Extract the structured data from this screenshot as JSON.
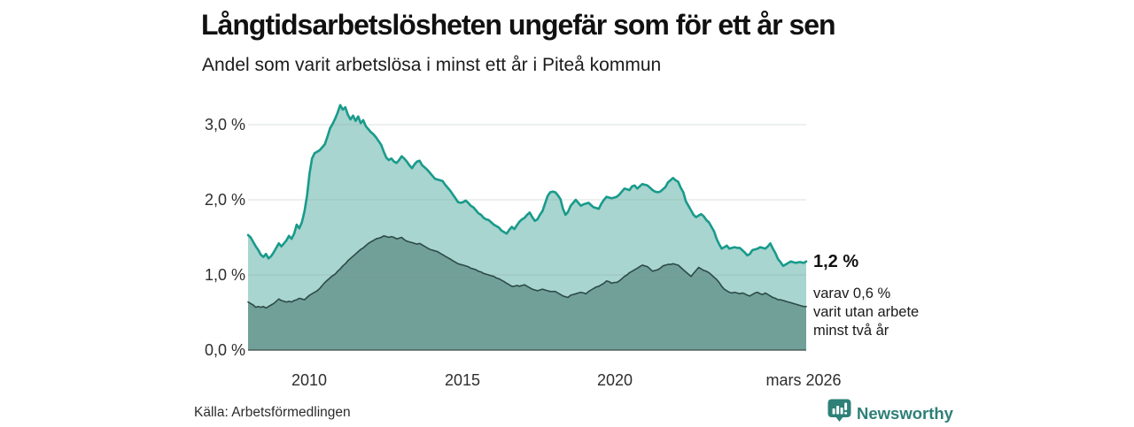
{
  "header": {
    "title": "Långtidsarbetslösheten ungefär som för ett år sen",
    "subtitle": "Andel som varit arbetslösa i minst ett år i Piteå kommun"
  },
  "annotation": {
    "value_label": "1,2 %",
    "note_lines": [
      "varav 0,6 %",
      "varit utan arbete",
      "minst två år"
    ]
  },
  "footer": {
    "source": "Källa: Arbetsförmedlingen",
    "brand": "Newsworthy"
  },
  "colors": {
    "series1_line": "#199a8b",
    "series1_fill": "#a8d5cf",
    "series2_line": "#2d4b47",
    "series2_fill": "#71a099",
    "gridline": "#8fa19e",
    "baseline": "#3f4a48",
    "brand_teal": "#2e8078"
  },
  "chart_data": {
    "type": "area",
    "title": "Långtidsarbetslösheten ungefär som för ett år sen",
    "subtitle": "Andel som varit arbetslösa i minst ett år i Piteå kommun",
    "unit": "%",
    "grid": true,
    "x_start": 2008.0,
    "x_step": 0.08333,
    "x_end_label": "mars 2026",
    "xlim": [
      2008.0,
      2026.17
    ],
    "ylim": [
      0,
      3.3
    ],
    "y_ticks": [
      {
        "value": 0,
        "label": "0,0 %"
      },
      {
        "value": 1,
        "label": "1,0 %"
      },
      {
        "value": 2,
        "label": "2,0 %"
      },
      {
        "value": 3,
        "label": "3,0 %"
      }
    ],
    "x_ticks": [
      {
        "value": 2010,
        "label": "2010"
      },
      {
        "value": 2015,
        "label": "2015"
      },
      {
        "value": 2020,
        "label": "2020"
      },
      {
        "value": 2026.17,
        "label": "mars 2026"
      }
    ],
    "series": [
      {
        "name": "Andel arbetslösa minst ett år",
        "end_value_label": "1,2 %",
        "line_color": "#199a8b",
        "fill_color": "#a8d5cf",
        "line_width": 2.6,
        "values": [
          1.53,
          1.5,
          1.44,
          1.38,
          1.33,
          1.27,
          1.24,
          1.28,
          1.22,
          1.25,
          1.3,
          1.36,
          1.42,
          1.38,
          1.42,
          1.46,
          1.52,
          1.48,
          1.55,
          1.67,
          1.62,
          1.7,
          1.84,
          2.05,
          2.35,
          2.55,
          2.62,
          2.64,
          2.66,
          2.7,
          2.74,
          2.84,
          2.95,
          3.01,
          3.08,
          3.16,
          3.26,
          3.2,
          3.23,
          3.13,
          3.07,
          3.12,
          3.05,
          3.11,
          3.02,
          3.06,
          2.98,
          2.94,
          2.9,
          2.87,
          2.83,
          2.78,
          2.73,
          2.64,
          2.56,
          2.53,
          2.55,
          2.51,
          2.49,
          2.53,
          2.58,
          2.55,
          2.51,
          2.46,
          2.42,
          2.47,
          2.51,
          2.52,
          2.46,
          2.43,
          2.4,
          2.36,
          2.32,
          2.28,
          2.27,
          2.26,
          2.25,
          2.2,
          2.16,
          2.12,
          2.07,
          2.02,
          1.97,
          1.96,
          1.97,
          1.99,
          1.96,
          1.92,
          1.9,
          1.86,
          1.82,
          1.8,
          1.76,
          1.74,
          1.73,
          1.7,
          1.67,
          1.65,
          1.63,
          1.59,
          1.57,
          1.55,
          1.6,
          1.64,
          1.61,
          1.66,
          1.71,
          1.74,
          1.76,
          1.8,
          1.83,
          1.77,
          1.72,
          1.74,
          1.8,
          1.85,
          1.95,
          2.05,
          2.1,
          2.11,
          2.1,
          2.06,
          2.01,
          1.88,
          1.8,
          1.84,
          1.92,
          1.96,
          2.0,
          1.96,
          1.92,
          1.94,
          1.95,
          1.96,
          1.93,
          1.9,
          1.89,
          1.88,
          1.95,
          2.0,
          2.04,
          2.03,
          2.02,
          2.03,
          2.04,
          2.07,
          2.11,
          2.15,
          2.14,
          2.13,
          2.18,
          2.19,
          2.15,
          2.18,
          2.21,
          2.2,
          2.19,
          2.16,
          2.13,
          2.11,
          2.1,
          2.11,
          2.14,
          2.17,
          2.23,
          2.26,
          2.29,
          2.26,
          2.24,
          2.16,
          2.1,
          1.98,
          1.92,
          1.86,
          1.8,
          1.77,
          1.79,
          1.81,
          1.78,
          1.73,
          1.7,
          1.64,
          1.58,
          1.48,
          1.41,
          1.35,
          1.37,
          1.39,
          1.35,
          1.36,
          1.37,
          1.36,
          1.36,
          1.33,
          1.3,
          1.26,
          1.28,
          1.33,
          1.34,
          1.35,
          1.37,
          1.36,
          1.35,
          1.38,
          1.42,
          1.35,
          1.29,
          1.21,
          1.17,
          1.12,
          1.14,
          1.16,
          1.18,
          1.17,
          1.16,
          1.17,
          1.17,
          1.16,
          1.18
        ]
      },
      {
        "name": "Andel som varit utan arbete minst två år",
        "end_value_label": "0,6 %",
        "line_color": "#2d4b47",
        "fill_color": "#71a099",
        "line_width": 1.6,
        "values": [
          0.64,
          0.62,
          0.6,
          0.57,
          0.58,
          0.57,
          0.58,
          0.56,
          0.58,
          0.6,
          0.62,
          0.65,
          0.68,
          0.66,
          0.65,
          0.64,
          0.65,
          0.64,
          0.66,
          0.67,
          0.69,
          0.68,
          0.67,
          0.7,
          0.73,
          0.75,
          0.77,
          0.79,
          0.82,
          0.86,
          0.9,
          0.93,
          0.96,
          0.99,
          1.01,
          1.05,
          1.08,
          1.12,
          1.15,
          1.19,
          1.22,
          1.25,
          1.28,
          1.31,
          1.34,
          1.36,
          1.39,
          1.42,
          1.44,
          1.46,
          1.48,
          1.49,
          1.5,
          1.52,
          1.51,
          1.5,
          1.51,
          1.5,
          1.48,
          1.49,
          1.5,
          1.47,
          1.45,
          1.44,
          1.43,
          1.42,
          1.41,
          1.42,
          1.4,
          1.38,
          1.36,
          1.34,
          1.33,
          1.32,
          1.31,
          1.29,
          1.27,
          1.25,
          1.23,
          1.21,
          1.19,
          1.17,
          1.15,
          1.14,
          1.13,
          1.12,
          1.11,
          1.09,
          1.08,
          1.07,
          1.05,
          1.04,
          1.02,
          1.01,
          1.0,
          0.99,
          0.98,
          0.96,
          0.95,
          0.93,
          0.91,
          0.89,
          0.87,
          0.85,
          0.85,
          0.86,
          0.85,
          0.86,
          0.87,
          0.85,
          0.83,
          0.81,
          0.8,
          0.79,
          0.8,
          0.81,
          0.8,
          0.79,
          0.78,
          0.78,
          0.78,
          0.76,
          0.74,
          0.72,
          0.71,
          0.7,
          0.73,
          0.74,
          0.75,
          0.76,
          0.77,
          0.76,
          0.75,
          0.78,
          0.8,
          0.82,
          0.84,
          0.85,
          0.87,
          0.89,
          0.92,
          0.91,
          0.89,
          0.9,
          0.9,
          0.92,
          0.95,
          0.98,
          1.0,
          1.03,
          1.05,
          1.07,
          1.09,
          1.11,
          1.13,
          1.12,
          1.11,
          1.08,
          1.05,
          1.06,
          1.07,
          1.09,
          1.12,
          1.13,
          1.14,
          1.14,
          1.15,
          1.14,
          1.13,
          1.1,
          1.07,
          1.04,
          1.01,
          0.98,
          1.02,
          1.06,
          1.1,
          1.08,
          1.06,
          1.05,
          1.03,
          1.0,
          0.97,
          0.94,
          0.9,
          0.85,
          0.81,
          0.79,
          0.77,
          0.76,
          0.77,
          0.76,
          0.75,
          0.76,
          0.75,
          0.73,
          0.72,
          0.74,
          0.76,
          0.77,
          0.75,
          0.74,
          0.76,
          0.74,
          0.72,
          0.7,
          0.69,
          0.67,
          0.67,
          0.66,
          0.65,
          0.64,
          0.63,
          0.62,
          0.61,
          0.6,
          0.59,
          0.58,
          0.58
        ]
      }
    ]
  }
}
